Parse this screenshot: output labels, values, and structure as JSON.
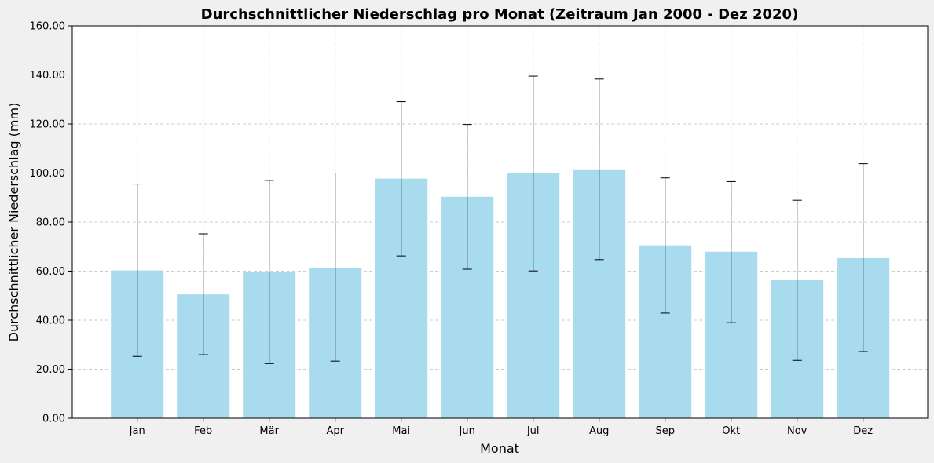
{
  "chart_data": {
    "type": "bar",
    "title": "Durchschnittlicher Niederschlag pro Monat (Zeitraum Jan 2000 - Dez 2020)",
    "xlabel": "Monat",
    "ylabel": "Durchschnittlicher Niederschlag (mm)",
    "categories": [
      "Jan",
      "Feb",
      "Mär",
      "Apr",
      "Mai",
      "Jun",
      "Jul",
      "Aug",
      "Sep",
      "Okt",
      "Nov",
      "Dez"
    ],
    "values": [
      60.3,
      50.5,
      59.8,
      61.4,
      97.7,
      90.3,
      99.9,
      101.5,
      70.5,
      67.9,
      56.3,
      65.3
    ],
    "error_low": [
      25.2,
      25.9,
      22.3,
      23.3,
      66.2,
      60.8,
      60.1,
      64.7,
      42.9,
      39.0,
      23.6,
      27.2
    ],
    "error_high": [
      95.5,
      75.2,
      97.0,
      100.0,
      129.1,
      119.8,
      139.5,
      138.3,
      98.0,
      96.5,
      88.9,
      103.8
    ],
    "ylim": [
      0,
      160
    ],
    "yticks": [
      "0.00",
      "20.00",
      "40.00",
      "60.00",
      "80.00",
      "100.00",
      "120.00",
      "140.00",
      "160.00"
    ],
    "grid": true,
    "colors": {
      "bar": "#a8dbed",
      "errorbar": "#000000",
      "grid": "#cccccc",
      "plot_background": "#ffffff",
      "figure_background": "#f0f0f0"
    }
  }
}
